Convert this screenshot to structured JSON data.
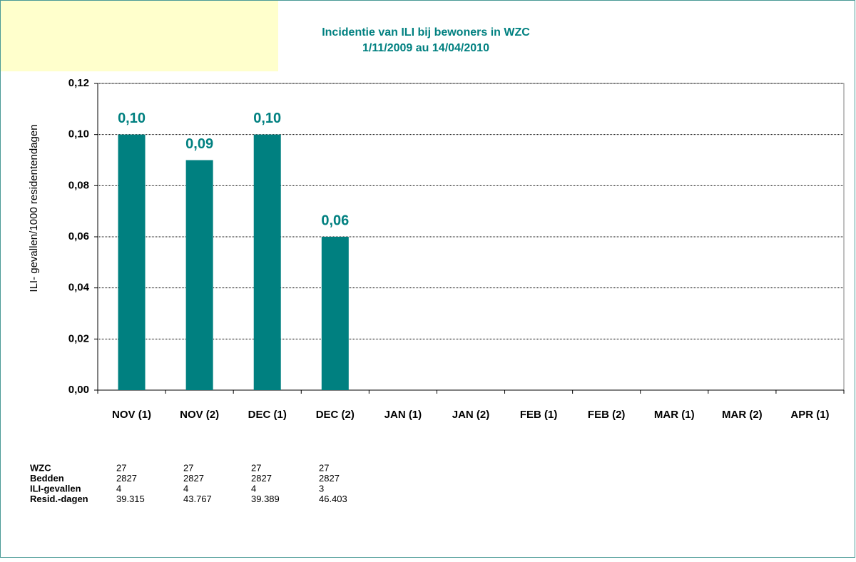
{
  "chart_data": {
    "type": "bar",
    "title": "Incidentie van ILI  bij bewoners in WZC",
    "subtitle": "1/11/2009 au 14/04/2010",
    "y_label": "ILI- gevallen/1000 residentendagen",
    "categories": [
      "NOV (1)",
      "NOV (2)",
      "DEC (1)",
      "DEC (2)",
      "JAN (1)",
      "JAN (2)",
      "FEB (1)",
      "FEB (2)",
      "MAR (1)",
      "MAR (2)",
      "APR (1)"
    ],
    "values": [
      0.1,
      0.09,
      0.1,
      0.06,
      null,
      null,
      null,
      null,
      null,
      null,
      null
    ],
    "value_labels": [
      "0,10",
      "0,09",
      "0,10",
      "0,06",
      null,
      null,
      null,
      null,
      null,
      null,
      null
    ],
    "color": "#008080",
    "ylim": [
      0,
      0.12
    ],
    "yticks": [
      {
        "value": 0,
        "label": "0,00"
      },
      {
        "value": 0.02,
        "label": "0,02"
      },
      {
        "value": 0.04,
        "label": "0,04"
      },
      {
        "value": 0.06,
        "label": "0,06"
      },
      {
        "value": 0.08,
        "label": "0,08"
      },
      {
        "value": 0.1,
        "label": "0,10"
      },
      {
        "value": 0.12,
        "label": "0,12"
      }
    ],
    "grid": true
  },
  "table": {
    "rows": [
      {
        "label": "WZC",
        "cells": [
          27,
          27,
          27,
          27
        ]
      },
      {
        "label": "Bedden",
        "cells": [
          2827,
          2827,
          2827,
          2827
        ]
      },
      {
        "label": "ILI-gevallen",
        "cells": [
          4,
          4,
          4,
          3
        ]
      },
      {
        "label": "Resid.-dagen",
        "cells": [
          "39.315",
          "43.767",
          "39.389",
          "46.403"
        ]
      }
    ]
  }
}
